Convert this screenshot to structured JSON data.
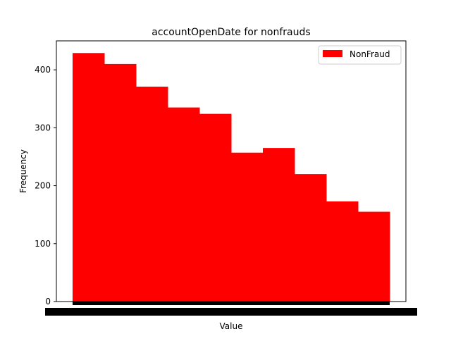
{
  "chart_data": {
    "type": "bar",
    "title": "accountOpenDate for nonfrauds",
    "xlabel": "Value",
    "ylabel": "Frequency",
    "ylim": [
      0,
      450
    ],
    "yticks": [
      0,
      100,
      200,
      300,
      400
    ],
    "series": [
      {
        "name": "NonFraud",
        "color": "#ff0000",
        "values": [
          429,
          410,
          371,
          335,
          324,
          257,
          265,
          220,
          173,
          155
        ]
      }
    ],
    "legend_position": "top-right",
    "grid": false,
    "x_tick_labels_note": "dense overlapping date tick labels render as a solid black band"
  }
}
